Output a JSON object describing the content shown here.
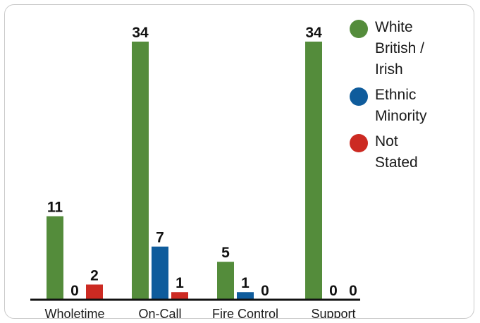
{
  "chart_data": {
    "type": "bar",
    "categories": [
      "Wholetime",
      "On-Call",
      "Fire Control",
      "Support"
    ],
    "series": [
      {
        "name": "White British / Irish",
        "color": "#548c3b",
        "values": [
          11,
          34,
          5,
          34
        ]
      },
      {
        "name": "Ethnic Minority",
        "color": "#0f5c9c",
        "values": [
          0,
          7,
          1,
          0
        ]
      },
      {
        "name": "Not Stated",
        "color": "#cc2a22",
        "values": [
          2,
          1,
          0,
          0
        ]
      }
    ],
    "ylim": [
      0,
      34
    ],
    "grid": false,
    "legend_position": "right",
    "legend_labels": [
      "White\nBritish /\nIrish",
      "Ethnic\nMinority",
      "Not\nStated"
    ]
  }
}
